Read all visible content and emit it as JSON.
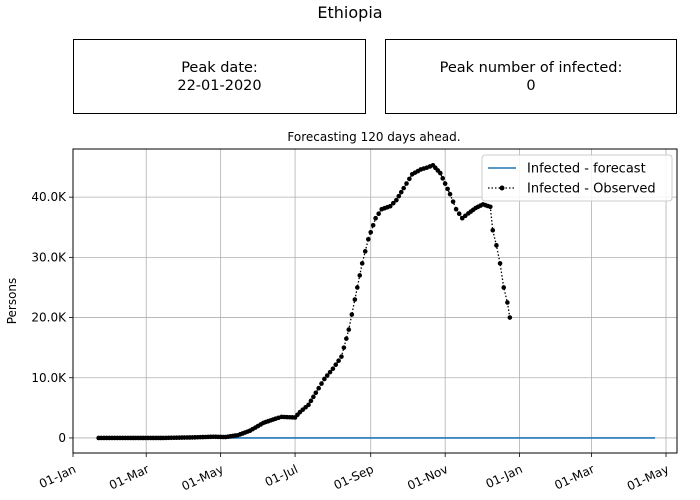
{
  "title": "Ethiopia",
  "peak_date_box": {
    "label": "Peak date:",
    "value": "22-01-2020"
  },
  "peak_infected_box": {
    "label": "Peak number of infected:",
    "value": "0"
  },
  "chart_data": {
    "type": "line",
    "subtitle": "Forecasting 120 days ahead.",
    "ylabel": "Persons",
    "xlabel": "",
    "x_axis": {
      "scale": "date",
      "range": [
        "2020-01-01",
        "2021-05-10"
      ],
      "tick_dates": [
        "2020-01-01",
        "2020-03-01",
        "2020-05-01",
        "2020-07-01",
        "2020-09-01",
        "2020-11-01",
        "2021-01-01",
        "2021-03-01",
        "2021-05-01"
      ],
      "tick_labels": [
        "01-Jan",
        "01-Mar",
        "01-May",
        "01-Jul",
        "01-Sep",
        "01-Nov",
        "01-Jan",
        "01-Mar",
        "01-May"
      ]
    },
    "y_axis": {
      "range": [
        -2500,
        48000
      ],
      "ticks": [
        0,
        10000,
        20000,
        30000,
        40000
      ],
      "tick_labels": [
        "0",
        "10.0K",
        "20.0K",
        "30.0K",
        "40.0K"
      ]
    },
    "grid": true,
    "legend_position": "top-right",
    "series": [
      {
        "name": "Infected - forecast",
        "color": "#1f77b4",
        "style": "solid",
        "points": [
          [
            "2020-01-22",
            0
          ],
          [
            "2021-04-22",
            0
          ]
        ]
      },
      {
        "name": "Infected - Observed",
        "color": "#000000",
        "style": "dotted-with-markers",
        "points": [
          [
            "2020-01-22",
            0
          ],
          [
            "2020-02-15",
            0
          ],
          [
            "2020-03-15",
            0
          ],
          [
            "2020-04-10",
            100
          ],
          [
            "2020-04-25",
            200
          ],
          [
            "2020-05-05",
            150
          ],
          [
            "2020-05-15",
            450
          ],
          [
            "2020-05-25",
            1200
          ],
          [
            "2020-06-05",
            2500
          ],
          [
            "2020-06-15",
            3200
          ],
          [
            "2020-06-20",
            3500
          ],
          [
            "2020-07-01",
            3400
          ],
          [
            "2020-07-05",
            4300
          ],
          [
            "2020-07-12",
            5500
          ],
          [
            "2020-07-18",
            7500
          ],
          [
            "2020-07-25",
            9800
          ],
          [
            "2020-08-01",
            11500
          ],
          [
            "2020-08-08",
            13500
          ],
          [
            "2020-08-14",
            18000
          ],
          [
            "2020-08-19",
            23000
          ],
          [
            "2020-08-25",
            29000
          ],
          [
            "2020-08-30",
            33000
          ],
          [
            "2020-09-05",
            36500
          ],
          [
            "2020-09-10",
            38000
          ],
          [
            "2020-09-17",
            38500
          ],
          [
            "2020-09-22",
            39500
          ],
          [
            "2020-09-28",
            41500
          ],
          [
            "2020-10-05",
            43800
          ],
          [
            "2020-10-12",
            44600
          ],
          [
            "2020-10-17",
            44900
          ],
          [
            "2020-10-22",
            45300
          ],
          [
            "2020-10-28",
            44000
          ],
          [
            "2020-11-05",
            40500
          ],
          [
            "2020-11-10",
            38000
          ],
          [
            "2020-11-15",
            36500
          ],
          [
            "2020-11-20",
            37300
          ],
          [
            "2020-11-26",
            38200
          ],
          [
            "2020-12-02",
            38800
          ],
          [
            "2020-12-08",
            38400
          ],
          [
            "2020-12-10",
            34500
          ],
          [
            "2020-12-13",
            32000
          ],
          [
            "2020-12-16",
            29000
          ],
          [
            "2020-12-19",
            25000
          ],
          [
            "2020-12-22",
            22500
          ],
          [
            "2020-12-24",
            20000
          ]
        ]
      }
    ]
  }
}
